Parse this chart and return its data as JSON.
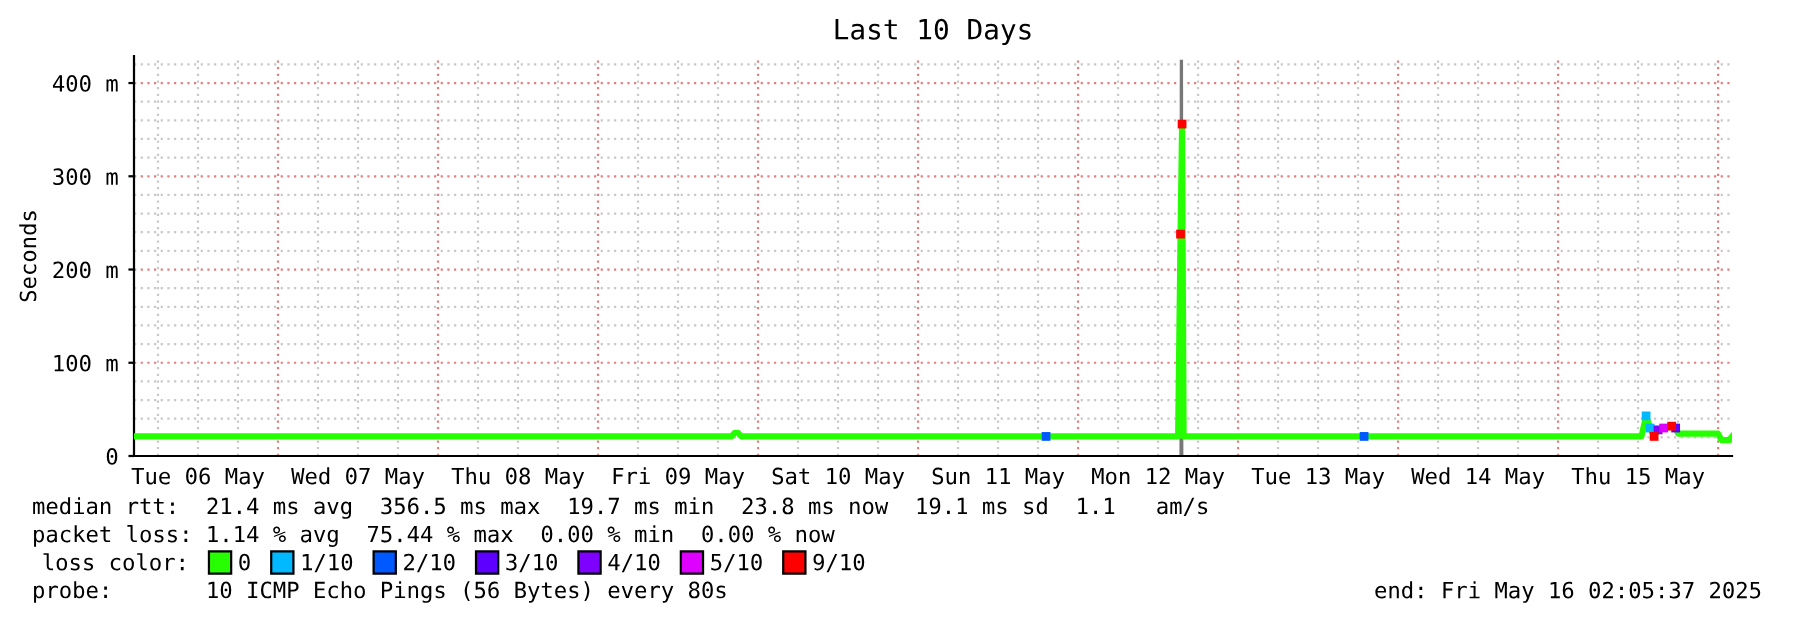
{
  "chart_data": {
    "type": "line",
    "title": "Last 10 Days",
    "ylabel": "Seconds",
    "xlim": [
      "2025-05-06T02:24",
      "2025-05-16T02:05"
    ],
    "xticks": [
      {
        "value": "2025-05-06T12:00",
        "label": "Tue 06 May"
      },
      {
        "value": "2025-05-07T12:00",
        "label": "Wed 07 May"
      },
      {
        "value": "2025-05-08T12:00",
        "label": "Thu 08 May"
      },
      {
        "value": "2025-05-09T12:00",
        "label": "Fri 09 May"
      },
      {
        "value": "2025-05-10T12:00",
        "label": "Sat 10 May"
      },
      {
        "value": "2025-05-11T12:00",
        "label": "Sun 11 May"
      },
      {
        "value": "2025-05-12T12:00",
        "label": "Mon 12 May"
      },
      {
        "value": "2025-05-13T12:00",
        "label": "Tue 13 May"
      },
      {
        "value": "2025-05-14T12:00",
        "label": "Wed 14 May"
      },
      {
        "value": "2025-05-15T12:00",
        "label": "Thu 15 May"
      }
    ],
    "ylim": [
      0,
      429
    ],
    "yticks": [
      0,
      {
        "value": 100,
        "label": "100 m"
      },
      {
        "value": 200,
        "label": "200 m"
      },
      {
        "value": 300,
        "label": "300 m"
      },
      {
        "value": 400,
        "label": "400 m"
      }
    ],
    "grid": true,
    "legend": "bottom",
    "legend_title": "loss color:",
    "series": [
      {
        "type": "area",
        "color": "#777777",
        "x": [
          "2025-05-12T15:12",
          "2025-05-12T15:15",
          "2025-05-12T15:45",
          "2025-05-12T15:48"
        ],
        "values": [
          0,
          425,
          425,
          0
        ]
      },
      {
        "name": "0",
        "color": "#26ff00",
        "x": [
          "2025-05-06T02:24",
          "2025-05-09T20:00",
          "2025-05-09T20:30",
          "2025-05-09T21:00",
          "2025-05-09T21:30",
          "2025-05-12T15:00",
          "2025-05-12T15:22",
          "2025-05-12T15:36",
          "2025-05-12T15:50",
          "2025-05-15T12:30",
          "2025-05-15T13:12",
          "2025-05-15T13:48",
          "2025-05-15T14:24",
          "2025-05-15T15:00",
          "2025-05-15T15:50",
          "2025-05-15T17:02",
          "2025-05-15T17:38",
          "2025-05-15T18:00",
          "2025-05-16T00:00",
          "2025-05-16T00:30",
          "2025-05-16T01:40",
          "2025-05-16T02:05"
        ],
        "values": [
          21,
          21,
          25,
          25,
          21,
          21,
          238,
          356,
          21,
          21,
          43,
          30,
          21,
          28,
          30,
          32,
          30,
          24,
          24,
          17,
          17,
          21
        ]
      },
      {
        "type": "scatter",
        "name": "1/10",
        "color": "#00b8ff",
        "x": [
          "2025-05-15T13:12",
          "2025-05-15T13:48"
        ],
        "values": [
          43,
          30
        ]
      },
      {
        "type": "scatter",
        "name": "2/10",
        "color": "#0059ff",
        "x": [
          "2025-05-11T19:12",
          "2025-05-13T18:54"
        ],
        "values": [
          21,
          21
        ]
      },
      {
        "type": "scatter",
        "name": "3/10",
        "color": "#5e00ff",
        "x": [
          "2025-05-15T17:38"
        ],
        "values": [
          30
        ]
      },
      {
        "type": "scatter",
        "name": "4/10",
        "color": "#7e00ff",
        "x": [
          "2025-05-15T15:00"
        ],
        "values": [
          28
        ]
      },
      {
        "type": "scatter",
        "name": "5/10",
        "color": "#dd00ff",
        "x": [
          "2025-05-15T15:50"
        ],
        "values": [
          30
        ]
      },
      {
        "type": "scatter",
        "name": "9/10",
        "color": "#ff0000",
        "x": [
          "2025-05-12T15:22",
          "2025-05-12T15:36",
          "2025-05-15T14:24",
          "2025-05-15T17:02"
        ],
        "values": [
          238,
          356,
          21,
          32
        ]
      }
    ],
    "annotations": [
      "median rtt:  21.4 ms avg  356.5 ms max  19.7 ms min  23.8 ms now  19.1 ms sd  1.1   am/s",
      "packet loss: 1.14 % avg  75.44 % max  0.00 % min  0.00 % now",
      "probe:       10 ICMP Echo Pings (56 Bytes) every 80s",
      "end: Fri May 16 02:05:37 2025"
    ]
  }
}
